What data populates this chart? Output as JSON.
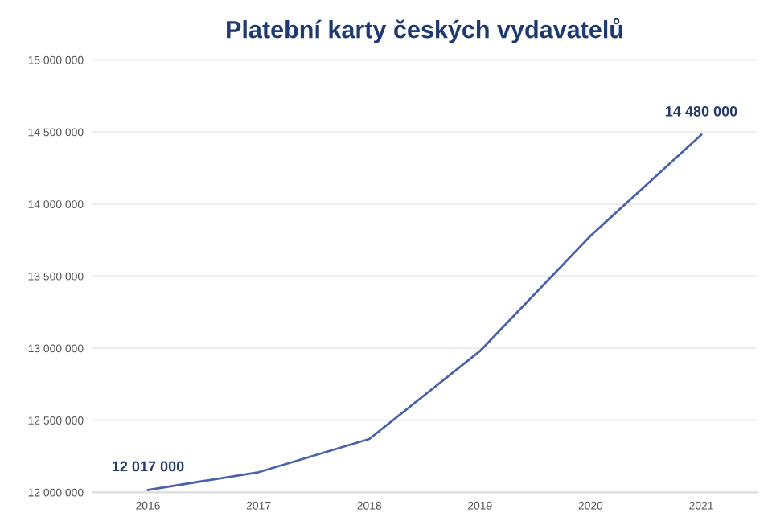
{
  "chart_data": {
    "type": "line",
    "title": "Platební karty českých vydavatelů",
    "categories": [
      "2016",
      "2017",
      "2018",
      "2019",
      "2020",
      "2021"
    ],
    "series": [
      {
        "color": "#4a62a8",
        "values": [
          12017000,
          12140000,
          12370000,
          12980000,
          13780000,
          14480000
        ],
        "value_labels": [
          "12 017 000",
          null,
          null,
          null,
          null,
          "14 480 000"
        ]
      }
    ],
    "ylim": [
      12000000,
      15000000
    ],
    "yticks": [
      {
        "value": 12000000,
        "label": "12 000 000"
      },
      {
        "value": 12500000,
        "label": "12 500 000"
      },
      {
        "value": 13000000,
        "label": "13 000 000"
      },
      {
        "value": 13500000,
        "label": "13 500 000"
      },
      {
        "value": 14000000,
        "label": "14 000 000"
      },
      {
        "value": 14500000,
        "label": "14 500 000"
      },
      {
        "value": 15000000,
        "label": "15 000 000"
      }
    ],
    "grid": "y",
    "marker": "none",
    "line_style": "solid"
  }
}
